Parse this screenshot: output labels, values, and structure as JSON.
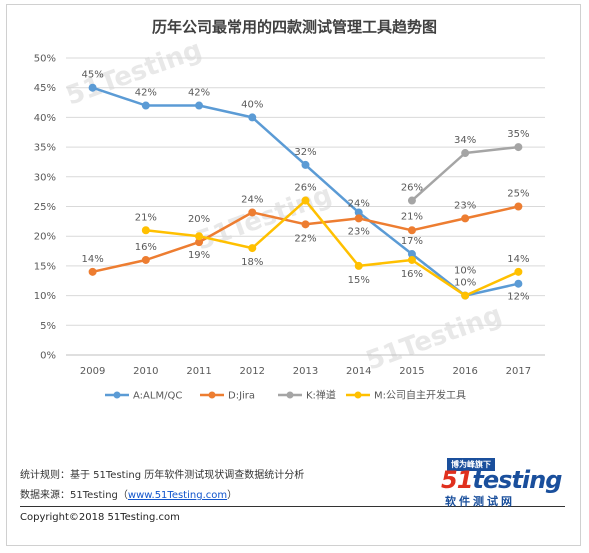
{
  "title": "历年公司最常用的四款测试管理工具趋势图",
  "watermark": "51Testing",
  "chart_data": {
    "type": "line",
    "title": "历年公司最常用的四款测试管理工具趋势图",
    "categories": [
      "2009",
      "2010",
      "2011",
      "2012",
      "2013",
      "2014",
      "2015",
      "2016",
      "2017"
    ],
    "ylim": [
      0,
      50
    ],
    "yticks": [
      "0%",
      "5%",
      "10%",
      "15%",
      "20%",
      "25%",
      "30%",
      "35%",
      "40%",
      "45%",
      "50%"
    ],
    "grid": true,
    "legend_position": "bottom",
    "series": [
      {
        "name": "A:ALM/QC",
        "color": "#5b9bd5",
        "values": [
          45,
          42,
          42,
          40,
          32,
          24,
          17,
          10,
          12
        ],
        "labels": [
          "45%",
          "42%",
          "42%",
          "40%",
          "32%",
          "24%",
          "17%",
          "10%",
          "12%"
        ]
      },
      {
        "name": "D:Jira",
        "color": "#ed7d31",
        "values": [
          14,
          16,
          19,
          24,
          22,
          23,
          21,
          23,
          25
        ],
        "labels": [
          "14%",
          "16%",
          "19%",
          "24%",
          "22%",
          "23%",
          "21%",
          "23%",
          "25%"
        ]
      },
      {
        "name": "K:禅道",
        "color": "#a5a5a5",
        "values": [
          null,
          null,
          null,
          null,
          null,
          null,
          26,
          34,
          35
        ],
        "labels": [
          "",
          "",
          "",
          "",
          "",
          "",
          "26%",
          "34%",
          "35%"
        ]
      },
      {
        "name": "M:公司自主开发工具",
        "color": "#ffc000",
        "values": [
          null,
          21,
          20,
          18,
          26,
          15,
          16,
          10,
          14
        ],
        "labels": [
          "",
          "21%",
          "20%",
          "18%",
          "26%",
          "15%",
          "16%",
          "10%",
          "14%"
        ]
      }
    ]
  },
  "footer": {
    "rule": "统计规则：基于 51Testing 历年软件测试现状调查数据统计分析",
    "source_prefix": "数据来源：51Testing（",
    "source_link": "www.51Testing.com",
    "source_suffix": "）",
    "copyright": "Copyright©2018 51Testing.com"
  },
  "logo": {
    "top": "博为峰旗下",
    "main_num": "51",
    "main_text": "testing",
    "sub": "软件测试网"
  }
}
